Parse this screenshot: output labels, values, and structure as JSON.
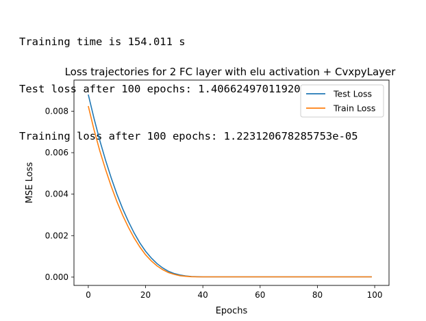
{
  "console": {
    "lines": [
      "Training time is 154.011 s",
      "Test loss after 100 epochs: 1.4066249701192009e-05",
      "Training loss after 100 epochs: 1.223120678285753e-05"
    ]
  },
  "chart_data": {
    "type": "line",
    "title": "Loss trajectories for 2 FC layer with elu activation + CvxpyLayer",
    "xlabel": "Epochs",
    "ylabel": "MSE Loss",
    "xlim": [
      -5,
      105
    ],
    "ylim": [
      -0.0004,
      0.0095
    ],
    "xticks": [
      0,
      20,
      40,
      60,
      80,
      100
    ],
    "xtick_labels": [
      "0",
      "20",
      "40",
      "60",
      "80",
      "100"
    ],
    "yticks": [
      0.0,
      0.002,
      0.004,
      0.006,
      0.008
    ],
    "ytick_labels": [
      "0.000",
      "0.002",
      "0.004",
      "0.006",
      "0.008"
    ],
    "grid": false,
    "legend_position": "top-right",
    "x": [
      0,
      2,
      4,
      6,
      8,
      10,
      12,
      14,
      16,
      18,
      20,
      22,
      24,
      26,
      28,
      30,
      32,
      34,
      36,
      38,
      40,
      45,
      50,
      60,
      70,
      80,
      90,
      99
    ],
    "series": [
      {
        "name": "Test Loss",
        "color": "#1f77b4",
        "values": [
          0.0088,
          0.00765,
          0.0066,
          0.00565,
          0.00478,
          0.004,
          0.0033,
          0.00268,
          0.00213,
          0.00165,
          0.00125,
          0.00092,
          0.00065,
          0.00044,
          0.00028,
          0.00017,
          0.0001,
          5.5e-05,
          3e-05,
          1.8e-05,
          1.4e-05,
          1.4e-05,
          1.4e-05,
          1.4e-05,
          1.4e-05,
          1.4e-05,
          1.4e-05,
          1.4e-05
        ]
      },
      {
        "name": "Train Loss",
        "color": "#ff7f0e",
        "values": [
          0.00825,
          0.0071,
          0.0061,
          0.0052,
          0.00438,
          0.00364,
          0.00298,
          0.0024,
          0.00189,
          0.00145,
          0.00108,
          0.00078,
          0.00054,
          0.00036,
          0.00022,
          0.00013,
          7e-05,
          4e-05,
          2e-05,
          1.4e-05,
          1.2e-05,
          1.2e-05,
          1.2e-05,
          1.2e-05,
          1.2e-05,
          1.2e-05,
          1.2e-05,
          1.2e-05
        ]
      }
    ]
  }
}
